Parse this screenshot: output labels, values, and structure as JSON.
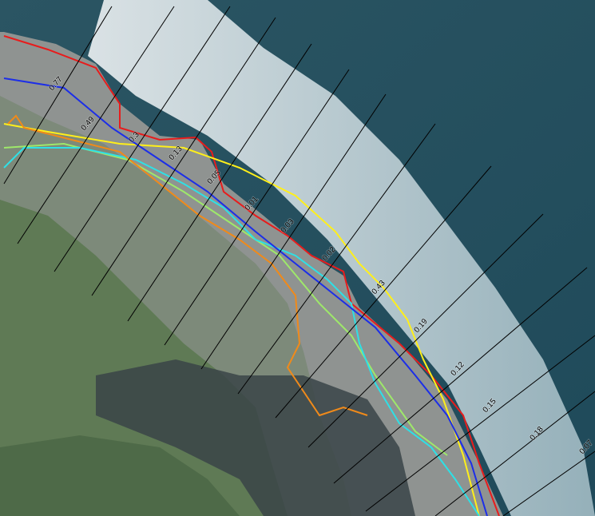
{
  "transects": [
    {
      "label": "0.77"
    },
    {
      "label": "0.49"
    },
    {
      "label": "0.3"
    },
    {
      "label": "0.13"
    },
    {
      "label": "0.05"
    },
    {
      "label": "0.01"
    },
    {
      "label": "0.03"
    },
    {
      "label": "0.02"
    },
    {
      "label": "0.43"
    },
    {
      "label": "0.19"
    },
    {
      "label": "0.12"
    },
    {
      "label": "0.15"
    },
    {
      "label": "0.18"
    },
    {
      "label": "0.07"
    }
  ]
}
